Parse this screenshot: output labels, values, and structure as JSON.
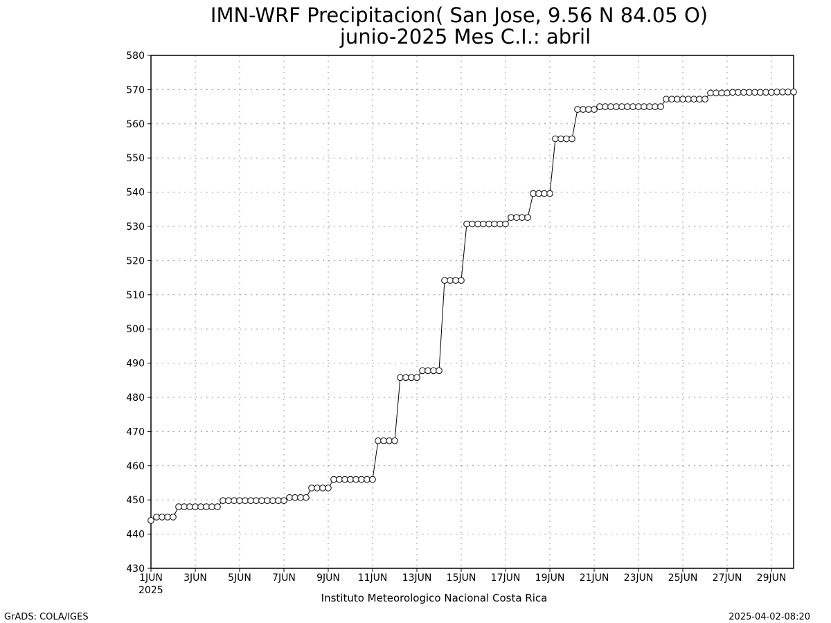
{
  "chart_data": {
    "type": "line",
    "title": "IMN-WRF  Precipitacion( San Jose, 9.56  N 84.05  O)",
    "subtitle": "junio-2025 Mes C.I.: abril",
    "xlabel": "",
    "ylabel": "",
    "ylim": [
      430,
      580
    ],
    "xlim": [
      0,
      29
    ],
    "grid": true,
    "y_ticks": [
      430,
      440,
      450,
      460,
      470,
      480,
      490,
      500,
      510,
      520,
      530,
      540,
      550,
      560,
      570,
      580
    ],
    "x_tick_labels": [
      "1JUN",
      "3JUN",
      "5JUN",
      "7JUN",
      "9JUN",
      "11JUN",
      "13JUN",
      "15JUN",
      "17JUN",
      "19JUN",
      "21JUN",
      "23JUN",
      "25JUN",
      "27JUN",
      "29JUN"
    ],
    "x_year_label": "2025",
    "series": [
      {
        "marker": "open-circle",
        "x": [
          0,
          0.25,
          0.5,
          0.75,
          1,
          1.25,
          1.5,
          1.75,
          2,
          2.25,
          2.5,
          2.75,
          3,
          3.25,
          3.5,
          3.75,
          4,
          4.25,
          4.5,
          4.75,
          5,
          5.25,
          5.5,
          5.75,
          6,
          6.25,
          6.5,
          6.75,
          7,
          7.25,
          7.5,
          7.75,
          8,
          8.25,
          8.5,
          8.75,
          9,
          9.25,
          9.5,
          9.75,
          10,
          10.25,
          10.5,
          10.75,
          11,
          11.25,
          11.5,
          11.75,
          12,
          12.25,
          12.5,
          12.75,
          13,
          13.25,
          13.5,
          13.75,
          14,
          14.25,
          14.5,
          14.75,
          15,
          15.25,
          15.5,
          15.75,
          16,
          16.25,
          16.5,
          16.75,
          17,
          17.25,
          17.5,
          17.75,
          18,
          18.25,
          18.5,
          18.75,
          19,
          19.25,
          19.5,
          19.75,
          20,
          20.25,
          20.5,
          20.75,
          21,
          21.25,
          21.5,
          21.75,
          22,
          22.25,
          22.5,
          22.75,
          23,
          23.25,
          23.5,
          23.75,
          24,
          24.25,
          24.5,
          24.75,
          25,
          25.25,
          25.5,
          25.75,
          26,
          26.25,
          26.5,
          26.75,
          27,
          27.25,
          27.5,
          27.75,
          28,
          28.25,
          28.5,
          28.75,
          29
        ],
        "values": [
          444,
          445,
          445,
          445,
          445,
          448,
          448,
          448,
          448,
          448,
          448,
          448,
          448,
          449.8,
          449.8,
          449.8,
          449.8,
          449.8,
          449.8,
          449.8,
          449.8,
          449.8,
          449.8,
          449.8,
          449.8,
          450.7,
          450.7,
          450.7,
          450.7,
          453.5,
          453.5,
          453.5,
          453.5,
          456,
          456,
          456,
          456,
          456,
          456,
          456,
          456,
          467.3,
          467.3,
          467.3,
          467.3,
          485.8,
          485.8,
          485.8,
          485.8,
          487.8,
          487.8,
          487.8,
          487.8,
          514.2,
          514.2,
          514.2,
          514.2,
          530.7,
          530.7,
          530.7,
          530.7,
          530.7,
          530.7,
          530.7,
          530.7,
          532.6,
          532.6,
          532.6,
          532.6,
          539.6,
          539.6,
          539.6,
          539.6,
          555.6,
          555.6,
          555.6,
          555.6,
          564.2,
          564.2,
          564.2,
          564.2,
          565,
          565,
          565,
          565,
          565,
          565,
          565,
          565,
          565,
          565,
          565,
          565,
          567.2,
          567.2,
          567.2,
          567.2,
          567.2,
          567.2,
          567.2,
          567.2,
          569,
          569,
          569,
          569,
          569.2,
          569.2,
          569.2,
          569.2,
          569.2,
          569.2,
          569.2,
          569.2,
          569.3,
          569.3,
          569.3,
          569.3
        ]
      }
    ]
  },
  "footer": {
    "institute": "Instituto Meteorologico Nacional Costa Rica",
    "grads": "GrADS: COLA/IGES",
    "timestamp": "2025-04-02-08:20"
  }
}
